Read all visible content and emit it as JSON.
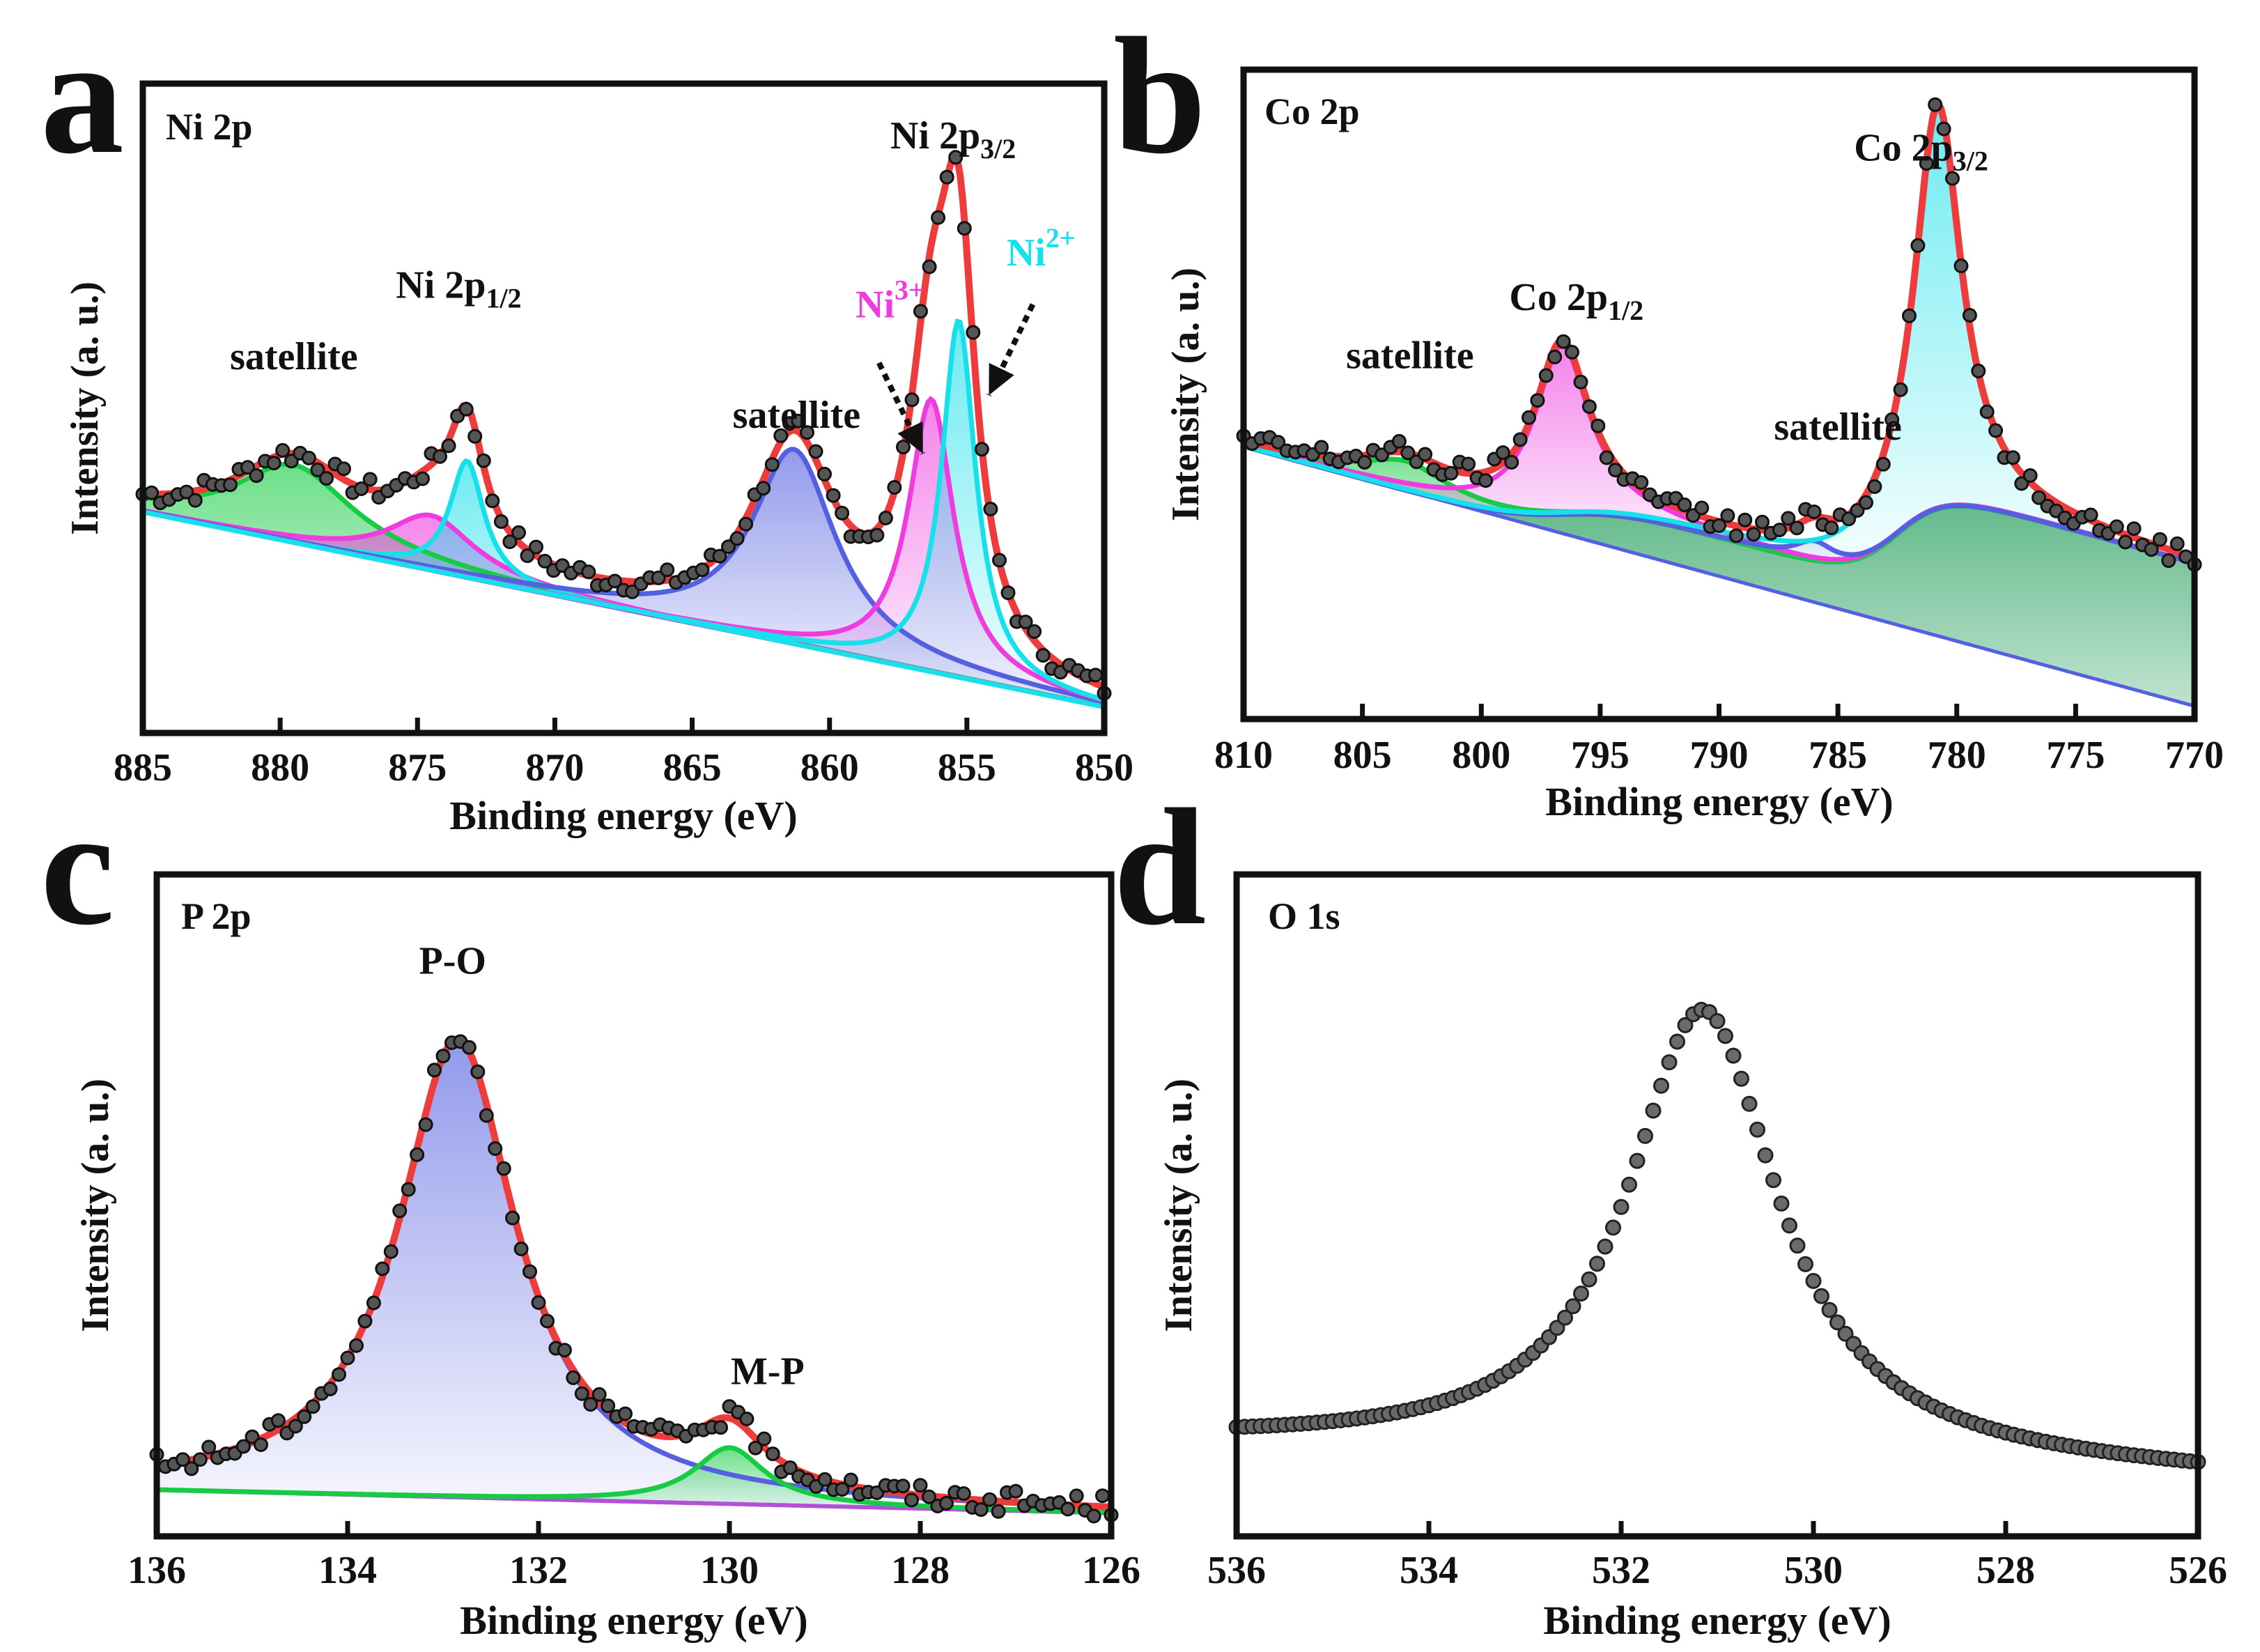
{
  "figure": {
    "panels": [
      "a",
      "b",
      "c",
      "d"
    ]
  },
  "colors": {
    "fit": "#ee3b3b",
    "ni2": "#18e0ea",
    "ni3": "#ee3ce0",
    "sat_green": "#17cc44",
    "sat_blue": "#5560e0",
    "data_points": "#333333",
    "co_green": "#2aa060"
  },
  "chart_data": [
    {
      "panel": "a",
      "type": "line",
      "title": "Ni 2p",
      "xlabel": "Binding energy (eV)",
      "ylabel": "Intensity (a. u.)",
      "xlim": [
        885,
        850
      ],
      "ylim": [
        0,
        1.0
      ],
      "x_ticks": [
        885,
        880,
        875,
        870,
        865,
        860,
        855,
        850
      ],
      "x_tick_labels": [
        "885",
        "880",
        "875",
        "870",
        "865",
        "860",
        "855",
        "850"
      ],
      "background": {
        "name": "background",
        "x": [
          885,
          850
        ],
        "y": [
          0.34,
          0.04
        ]
      },
      "peaks": [
        {
          "name": "satellite",
          "center": 879.5,
          "height": 0.12,
          "width": 2.6,
          "color": "#17cc44"
        },
        {
          "name": "Ni3+ 2p1/2",
          "center": 874.5,
          "height": 0.085,
          "width": 1.9,
          "color": "#ee3ce0"
        },
        {
          "name": "Ni2+ 2p1/2",
          "center": 873.2,
          "height": 0.18,
          "width": 0.75,
          "color": "#18e0ea"
        },
        {
          "name": "satellite",
          "center": 861.3,
          "height": 0.3,
          "width": 1.85,
          "color": "#5560e0"
        },
        {
          "name": "Ni3+ 2p3/2",
          "center": 856.3,
          "height": 0.42,
          "width": 1.0,
          "color": "#ee3ce0"
        },
        {
          "name": "Ni2+ 2p3/2",
          "center": 855.3,
          "height": 0.55,
          "width": 0.75,
          "color": "#18e0ea"
        }
      ],
      "annotations": [
        {
          "text": "Ni 2p",
          "sub": "1/2",
          "sup": "",
          "x": 873.5,
          "y": 0.67,
          "color": "#111111"
        },
        {
          "text": "Ni 2p",
          "sub": "3/2",
          "sup": "",
          "x": 855.5,
          "y": 0.9,
          "color": "#111111"
        },
        {
          "text": "satellite",
          "sub": "",
          "sup": "",
          "x": 879.5,
          "y": 0.56,
          "color": "#111111"
        },
        {
          "text": "satellite",
          "sub": "",
          "sup": "",
          "x": 861.2,
          "y": 0.47,
          "color": "#111111"
        },
        {
          "text": "Ni",
          "sub": "",
          "sup": "3+",
          "x": 857.8,
          "y": 0.64,
          "color": "#ee3ce0"
        },
        {
          "text": "Ni",
          "sub": "",
          "sup": "2+",
          "x": 852.3,
          "y": 0.72,
          "color": "#18e0ea"
        }
      ],
      "arrows": [
        {
          "from": [
            858.2,
            0.57
          ],
          "to": [
            856.6,
            0.43
          ]
        },
        {
          "from": [
            852.6,
            0.66
          ],
          "to": [
            854.2,
            0.52
          ]
        }
      ]
    },
    {
      "panel": "b",
      "type": "line",
      "title": "Co 2p",
      "xlabel": "Binding energy (eV)",
      "ylabel": "Intensity (a. u.)",
      "xlim": [
        810,
        770
      ],
      "ylim": [
        0,
        1.0
      ],
      "x_ticks": [
        810,
        805,
        800,
        795,
        790,
        785,
        780,
        775,
        770
      ],
      "x_tick_labels": [
        "810",
        "805",
        "800",
        "795",
        "790",
        "785",
        "780",
        "775",
        "770"
      ],
      "background": {
        "name": "background",
        "x": [
          810,
          770
        ],
        "y": [
          0.42,
          0.02
        ]
      },
      "shirley_steps": [
        {
          "center": 796.5,
          "height": 0.06,
          "width": 1.4
        },
        {
          "center": 782.5,
          "height": 0.16,
          "width": 1.0
        }
      ],
      "peaks": [
        {
          "name": "satellite",
          "center": 803.2,
          "height": 0.045,
          "width": 2.2,
          "color": "#17cc44"
        },
        {
          "name": "Co 2p1/2",
          "center": 796.6,
          "height": 0.26,
          "width": 1.4,
          "color": "#ee3ce0"
        },
        {
          "name": "satellite",
          "center": 786.0,
          "height": 0.03,
          "width": 1.0,
          "color": "#5560e0"
        },
        {
          "name": "Co 2p3/2",
          "center": 780.8,
          "height": 0.62,
          "width": 1.2,
          "color": "#18e0ea"
        }
      ],
      "annotations": [
        {
          "text": "Co 2p",
          "sub": "1/2",
          "sup": "",
          "x": 796.0,
          "y": 0.63,
          "color": "#111111"
        },
        {
          "text": "Co 2p",
          "sub": "3/2",
          "sup": "",
          "x": 781.5,
          "y": 0.86,
          "color": "#111111"
        },
        {
          "text": "satellite",
          "sub": "",
          "sup": "",
          "x": 803.0,
          "y": 0.54,
          "color": "#111111"
        },
        {
          "text": "satellite",
          "sub": "",
          "sup": "",
          "x": 785.0,
          "y": 0.43,
          "color": "#111111"
        }
      ]
    },
    {
      "panel": "c",
      "type": "line",
      "title": "P 2p",
      "xlabel": "Binding energy (eV)",
      "ylabel": "Intensity (a. u.)",
      "xlim": [
        136,
        126
      ],
      "ylim": [
        0,
        1.0
      ],
      "x_ticks": [
        136,
        134,
        132,
        130,
        128,
        126
      ],
      "x_tick_labels": [
        "136",
        "134",
        "132",
        "130",
        "128",
        "126"
      ],
      "background": {
        "name": "background",
        "x": [
          136,
          126
        ],
        "y": [
          0.07,
          0.035
        ]
      },
      "peaks": [
        {
          "name": "P-O",
          "center": 132.85,
          "height": 0.69,
          "width": 0.75,
          "color": "#5560e0"
        },
        {
          "name": "M-P",
          "center": 130.0,
          "height": 0.085,
          "width": 0.45,
          "color": "#17cc44"
        }
      ],
      "annotations": [
        {
          "text": "P-O",
          "sub": "",
          "sup": "",
          "x": 132.9,
          "y": 0.85,
          "color": "#111111"
        },
        {
          "text": "M-P",
          "sub": "",
          "sup": "",
          "x": 129.6,
          "y": 0.23,
          "color": "#111111"
        }
      ]
    },
    {
      "panel": "d",
      "type": "scatter",
      "title": "O 1s",
      "xlabel": "Binding energy (eV)",
      "ylabel": "Intensity (a. u.)",
      "xlim": [
        536,
        526
      ],
      "ylim": [
        0,
        1.0
      ],
      "x_ticks": [
        536,
        534,
        532,
        530,
        528,
        526
      ],
      "x_tick_labels": [
        "536",
        "534",
        "532",
        "530",
        "528",
        "526"
      ],
      "baseline": {
        "x": [
          536,
          526
        ],
        "y": [
          0.14,
          0.09
        ]
      },
      "peaks": [
        {
          "name": "O 1s",
          "center": 531.15,
          "height": 0.68,
          "width": 0.95,
          "color": "#333333"
        }
      ],
      "annotations": []
    }
  ]
}
